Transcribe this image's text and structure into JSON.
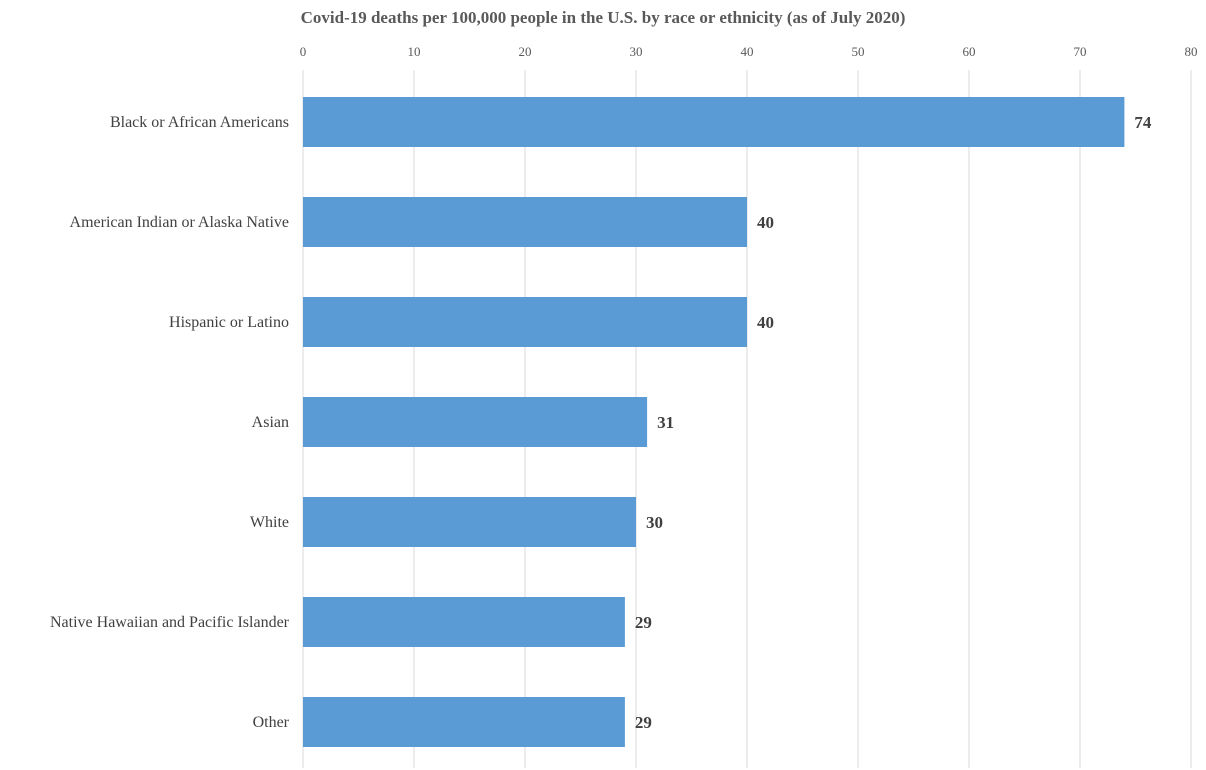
{
  "chart_data": {
    "type": "bar",
    "orientation": "horizontal",
    "title": "Covid-19 deaths per 100,000 people in the U.S. by race or ethnicity (as of July 2020)",
    "categories": [
      "Black or African Americans",
      "American Indian or Alaska Native",
      "Hispanic or Latino",
      "Asian",
      "White",
      "Native Hawaiian and Pacific Islander",
      "Other"
    ],
    "values": [
      74,
      40,
      40,
      31,
      30,
      29,
      29
    ],
    "data_labels": [
      "74",
      "40",
      "40",
      "31",
      "30",
      "29",
      "29"
    ],
    "xlim": [
      0,
      80
    ],
    "x_ticks": [
      0,
      10,
      20,
      30,
      40,
      50,
      60,
      70,
      80
    ],
    "x_axis_position": "top",
    "grid": true,
    "bar_color": "#5b9bd5",
    "xlabel": "",
    "ylabel": ""
  }
}
